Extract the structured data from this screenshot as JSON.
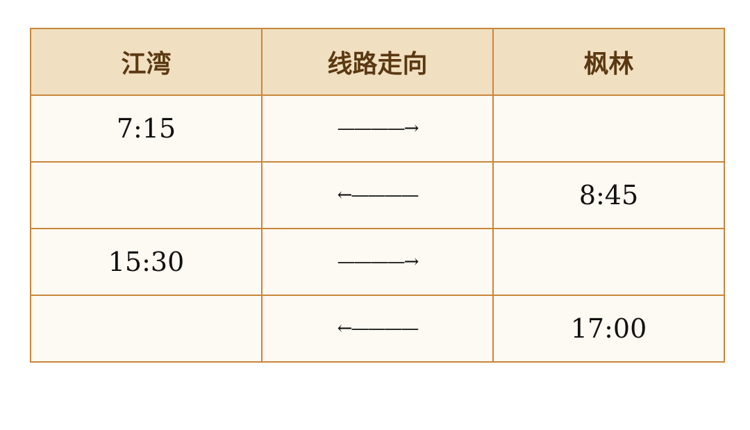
{
  "table": {
    "headers": [
      "江湾",
      "线路走向",
      "枫林"
    ],
    "rows": [
      [
        "7:15",
        "————→",
        ""
      ],
      [
        "",
        "←————",
        "8:45"
      ],
      [
        "15:30",
        "————→",
        ""
      ],
      [
        "",
        "←————",
        "17:00"
      ]
    ]
  },
  "colors": {
    "border": "#c8863a",
    "header_bg": "#f0dfc0",
    "header_text": "#5a3812",
    "body_bg": "#fdf9f3"
  }
}
